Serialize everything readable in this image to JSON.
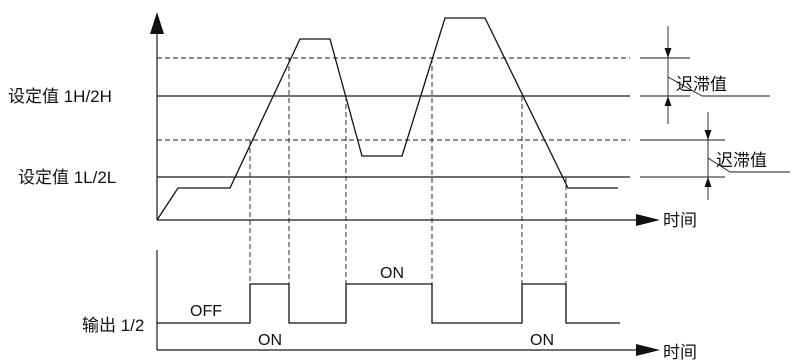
{
  "labels": {
    "setpoint_high": "设定值 1H/2H",
    "setpoint_low": "设定值 1L/2L",
    "output": "输出 1/2",
    "hysteresis_upper": "迟滞值",
    "hysteresis_lower": "迟滞值",
    "time_axis_upper": "时间",
    "time_axis_lower": "时间",
    "state_off": "OFF",
    "state_on_1": "ON",
    "state_on_2": "ON",
    "state_on_3": "ON"
  }
}
